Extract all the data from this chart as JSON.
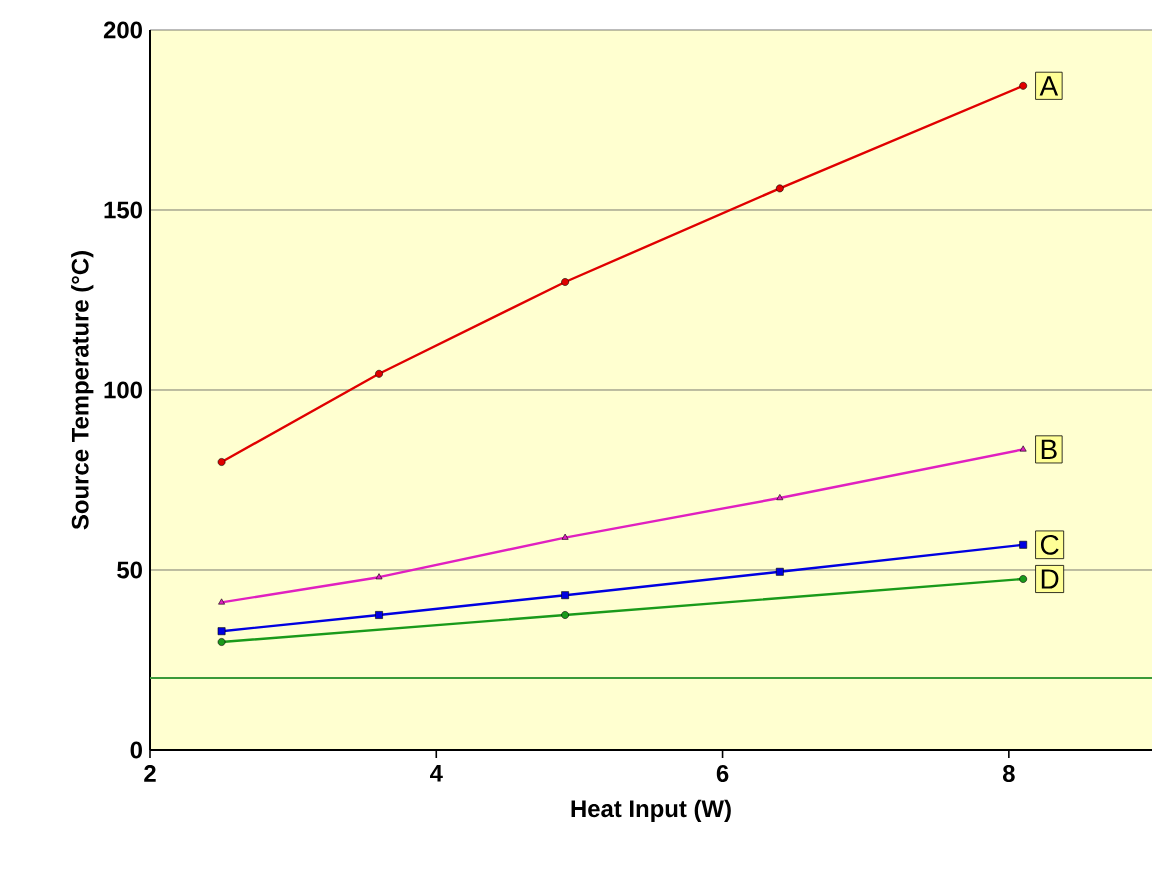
{
  "chart_data": {
    "type": "line",
    "xlabel": "Heat Input (W)",
    "ylabel": "Source Temperature (°C)",
    "xlim": [
      2,
      9
    ],
    "xticks": [
      2,
      4,
      6,
      8
    ],
    "ylim": [
      0,
      200
    ],
    "yticks": [
      0,
      50,
      100,
      150,
      200
    ],
    "grid": "y",
    "x": [
      2.5,
      3.6,
      4.9,
      6.4,
      8.1
    ],
    "series": [
      {
        "name": "A",
        "color": "#e00000",
        "marker": "circle",
        "values": [
          80,
          104.5,
          130,
          156,
          184.5
        ]
      },
      {
        "name": "B",
        "color": "#e020c0",
        "marker": "triangle",
        "values": [
          41,
          48,
          59,
          70,
          83.5
        ]
      },
      {
        "name": "C",
        "color": "#0000e0",
        "marker": "square",
        "values": [
          33,
          37.5,
          43,
          49.5,
          57
        ]
      },
      {
        "name": "D",
        "color": "#1a9a1a",
        "marker": "circle",
        "x": [
          2.5,
          4.9,
          8.1
        ],
        "values": [
          30,
          37.5,
          47.5
        ]
      }
    ],
    "ref_lines": [
      {
        "axis": "y",
        "value": 20,
        "color": "#3a9a3a"
      }
    ]
  }
}
